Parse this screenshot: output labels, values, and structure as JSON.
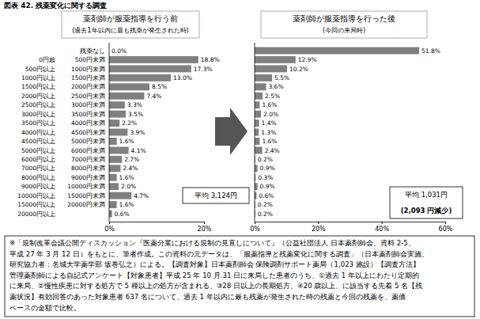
{
  "title": "図表 42. 残薬変化に関する調査",
  "chart_data": [
    {
      "type": "bar",
      "orientation": "horizontal",
      "title": "薬剤師が服薬指導を行う前",
      "subtitle": "(過去1年以内に最も残薬が発生された時)",
      "categories": [
        "残薬なし",
        "0円超 500円未満",
        "500円以上 1000円未満",
        "1000円以上 1500円未満",
        "1500円以上 2000円未満",
        "2000円以上 2500円未満",
        "2500円以上 3000円未満",
        "3000円以上 3500円未満",
        "3500円以上 4000円未満",
        "4000円以上 4500円未満",
        "4500円以上 5000円未満",
        "5000円以上 6000円未満",
        "6000円以上 7000円未満",
        "7000円以上 8000円未満",
        "8000円以上 9000円未満",
        "9000円以上 10000円未満",
        "10000円以上 15000円未満",
        "15000円以上 20000円未満",
        "20000円以上"
      ],
      "values": [
        0.0,
        18.8,
        17.3,
        13.0,
        8.5,
        7.4,
        3.3,
        3.5,
        2.2,
        3.9,
        1.6,
        4.1,
        2.7,
        2.4,
        1.6,
        2.0,
        4.7,
        1.6,
        0.6
      ],
      "value_labels": [
        "0.0%",
        "18.8%",
        "17.3%",
        "13.0%",
        "8.5%",
        "7.4%",
        "3.3%",
        "3.5%",
        "2.2%",
        "3.9%",
        "1.6%",
        "4.1%",
        "2.7%",
        "2.4%",
        "1.6%",
        "2.0%",
        "4.7%",
        "1.6%",
        "0.6%"
      ],
      "data_labels": true,
      "color": "#808080",
      "xlim": [
        0,
        20
      ],
      "xticks": [
        {
          "value": 0,
          "label": "0%"
        },
        {
          "value": 20,
          "label": "20%"
        }
      ],
      "tick_labels": true,
      "grid": false,
      "annotations": [
        "平均 3,124円"
      ]
    },
    {
      "type": "bar",
      "orientation": "horizontal",
      "title": "薬剤師が服薬指導を行った後",
      "subtitle": "(今回の来局時)",
      "categories": [
        null,
        null,
        null,
        null,
        null,
        null,
        null,
        null,
        null,
        null,
        null,
        null,
        null,
        null,
        null,
        null,
        null,
        null,
        null
      ],
      "values": [
        51.8,
        12.9,
        10.2,
        5.5,
        3.6,
        2.5,
        1.6,
        2.0,
        1.4,
        1.3,
        1.6,
        2.4,
        0.2,
        0.9,
        0.3,
        0.9,
        0.6,
        0.2,
        0.2
      ],
      "value_labels": [
        "51.8%",
        "12.9%",
        "10.2%",
        "5.5%",
        "3.6%",
        "2.5%",
        "1.6%",
        "2.0%",
        "1.4%",
        "1.3%",
        "1.6%",
        "2.4%",
        "0.2%",
        "0.9%",
        "0.3%",
        "0.9%",
        "0.6%",
        "0.2%",
        "0.2%"
      ],
      "data_labels": true,
      "color": "#808080",
      "xlim": [
        0,
        60
      ],
      "xticks": [
        {
          "value": 0,
          "label": "0%"
        },
        {
          "value": 20,
          "label": "20%"
        },
        {
          "value": 40,
          "label": "40%"
        },
        {
          "value": 60,
          "label": "60%"
        }
      ],
      "tick_labels": "x",
      "grid": false,
      "annotations": [
        "平均 1,031円",
        "(2,093 円減少)"
      ]
    }
  ],
  "footnote": [
    "※「規制改革会議公開ディスカッション『医薬分業における規制の見直しについて』（公益社団法人 日本薬剤師会、資料 2-5、",
    "平成 27 年 3 月 12 日）をもとに、筆者作成。この資料の元データは、「服薬指導と残薬変化に関する調査」（日本薬剤師会実施、",
    "研究協力者：名城大学薬学部 坂巻弘之）による。【調査対象】日本薬剤師会 保険調剤サポート薬局（1,023 施設）【調査方法】",
    "管理薬剤師による自記式アンケート【対象患者】平成 25 年 10 月 31 日に来局した患者のうち、①過去 1 年以上にわたり定期的",
    "に来局、②慢性疾患に対する処方で 5 種以上の処方が含まれる、③28 日以上の長期処方、④20 歳以上、に該当する先着 5 名【残",
    "薬状況】有効回答のあった対象患者 637 名について、過去 1 年以内に最も残薬が発生された時の残薬と今回の残薬を、薬価",
    "ベースの金額で比較。"
  ]
}
